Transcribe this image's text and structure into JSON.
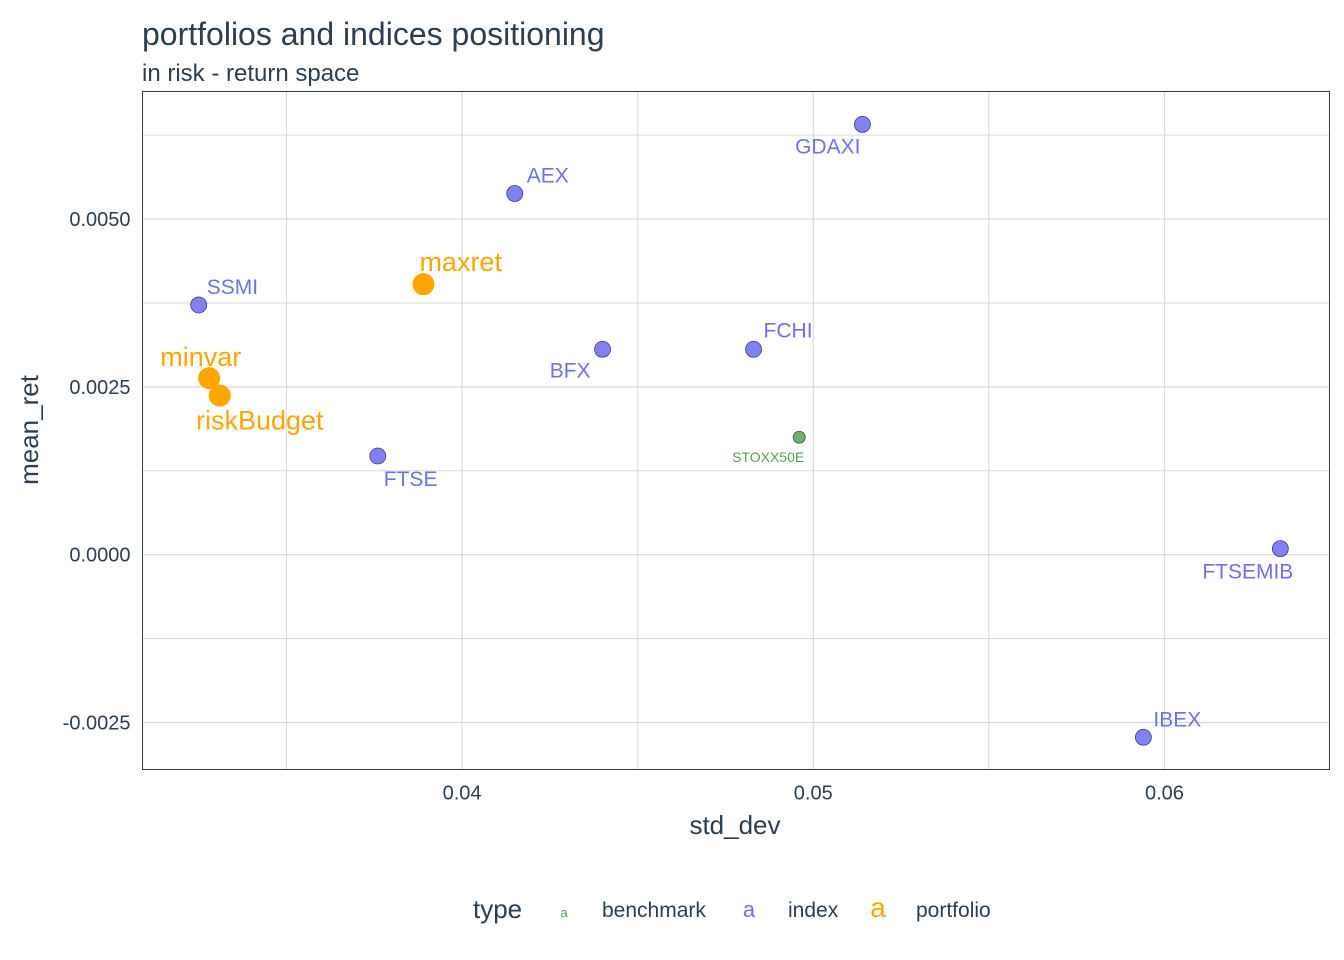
{
  "colors": {
    "benchmark": "#5c9b5c",
    "index": "#6f6ff0",
    "portfolio": "#ffa500",
    "text": "#2c3e50",
    "grid": "#d9d9d9",
    "panel_border": "#2c3e50"
  },
  "chart_data": {
    "type": "scatter",
    "title": "portfolios and indices positioning",
    "subtitle": "in risk - return space",
    "xlabel": "std_dev",
    "ylabel": "mean_ret",
    "xlim": [
      0.0309,
      0.0647
    ],
    "ylim": [
      -0.0032,
      0.0069
    ],
    "x_ticks": [
      {
        "value": 0.04,
        "label": "0.04"
      },
      {
        "value": 0.05,
        "label": "0.05"
      },
      {
        "value": 0.06,
        "label": "0.06"
      }
    ],
    "y_ticks": [
      {
        "value": -0.0025,
        "label": "-0.0025"
      },
      {
        "value": 0.0,
        "label": "0.0000"
      },
      {
        "value": 0.0025,
        "label": "0.0025"
      },
      {
        "value": 0.005,
        "label": "0.0050"
      }
    ],
    "x_minor_grid": [
      0.035,
      0.045,
      0.055
    ],
    "y_minor_grid": [
      -0.00125,
      0.00125,
      0.00375,
      0.00625
    ],
    "grid": true,
    "legend_position": "bottom",
    "legend": {
      "title": "type",
      "entries": [
        {
          "key": "benchmark",
          "label": "benchmark",
          "glyph": "a"
        },
        {
          "key": "index",
          "label": "index",
          "glyph": "a"
        },
        {
          "key": "portfolio",
          "label": "portfolio",
          "glyph": "a"
        }
      ]
    },
    "points": [
      {
        "label": "SSMI",
        "type": "index",
        "x": 0.0325,
        "y": 0.00372
      },
      {
        "label": "FTSE",
        "type": "index",
        "x": 0.0376,
        "y": 0.00147
      },
      {
        "label": "AEX",
        "type": "index",
        "x": 0.0415,
        "y": 0.00538
      },
      {
        "label": "BFX",
        "type": "index",
        "x": 0.044,
        "y": 0.00306
      },
      {
        "label": "FCHI",
        "type": "index",
        "x": 0.0483,
        "y": 0.00306
      },
      {
        "label": "GDAXI",
        "type": "index",
        "x": 0.0514,
        "y": 0.00641
      },
      {
        "label": "FTSEMIB",
        "type": "index",
        "x": 0.0633,
        "y": 9e-05
      },
      {
        "label": "IBEX",
        "type": "index",
        "x": 0.0594,
        "y": -0.00272
      },
      {
        "label": "STOXX50E",
        "type": "benchmark",
        "x": 0.0496,
        "y": 0.00175
      },
      {
        "label": "minvar",
        "type": "portfolio",
        "x": 0.0328,
        "y": 0.00263
      },
      {
        "label": "riskBudget",
        "type": "portfolio",
        "x": 0.0331,
        "y": 0.00237
      },
      {
        "label": "maxret",
        "type": "portfolio",
        "x": 0.0389,
        "y": 0.00403
      }
    ]
  }
}
